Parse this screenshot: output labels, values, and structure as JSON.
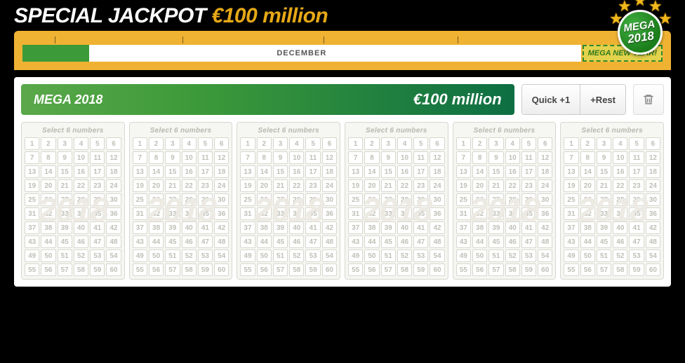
{
  "header": {
    "title_prefix": "SPECIAL JACKPOT",
    "title_amount": "€100 million",
    "colors": {
      "prefix": "#ffffff",
      "amount": "#e6a817",
      "page_bg": "#000000"
    }
  },
  "badge": {
    "line1": "MEGA",
    "line2": "2018",
    "circle_color": "#2a8f2a",
    "star_color": "#f0b81b"
  },
  "timeline": {
    "band_color": "#efb233",
    "month_label": "DECEMBER",
    "fill_percent": 12,
    "fill_color": "#3d9a39",
    "tag_label": "MEGA NEW YEAR!",
    "tick_positions_percent": [
      5,
      25,
      47,
      68
    ]
  },
  "jackpot_bar": {
    "name": "MEGA 2018",
    "amount": "€100 million",
    "gradient_from": "#5aa84a",
    "gradient_to": "#0d6e43"
  },
  "buttons": {
    "quick_plus_one": "Quick +1",
    "plus_rest": "+Rest"
  },
  "ticket": {
    "header_label": "Select 6 numbers",
    "count": 6,
    "number_min": 1,
    "number_max": 60,
    "grid_cols": 6,
    "watermark": "2018",
    "cell_bg": "#ffffff",
    "cell_border": "#d8d8d0",
    "cell_text": "#c0c0b8"
  }
}
